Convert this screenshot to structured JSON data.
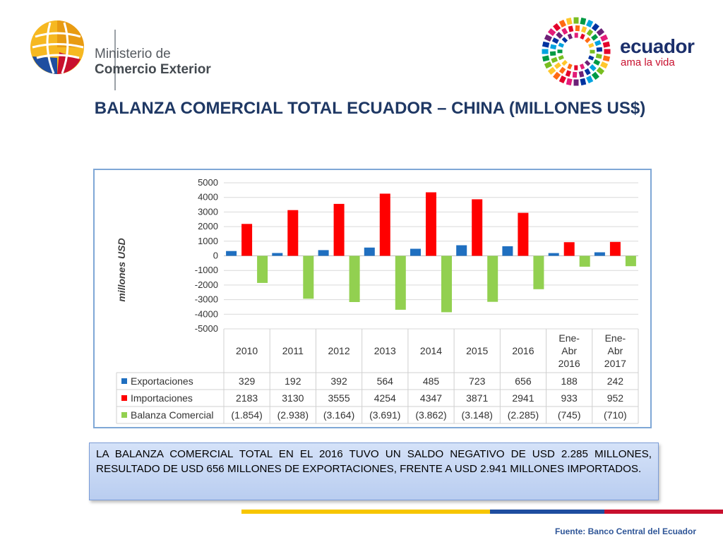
{
  "header": {
    "ministry_line1": "Ministerio de",
    "ministry_line2": "Comercio Exterior",
    "brand_word": "ecuador",
    "brand_tagline": "ama la vida"
  },
  "title": "BALANZA COMERCIAL TOTAL ECUADOR – CHINA (MILLONES US$)",
  "chart_data": {
    "type": "bar",
    "title": "",
    "ylabel": "millones USD",
    "xlabel": "",
    "ylim": [
      -5000,
      5000
    ],
    "yticks": [
      5000,
      4000,
      3000,
      2000,
      1000,
      0,
      -1000,
      -2000,
      -3000,
      -4000,
      -5000
    ],
    "grid": true,
    "legend": "table-left",
    "categories": [
      "2010",
      "2011",
      "2012",
      "2013",
      "2014",
      "2015",
      "2016",
      "Ene-Abr 2016",
      "Ene-Abr 2017"
    ],
    "category_lines": [
      [
        "2010"
      ],
      [
        "2011"
      ],
      [
        "2012"
      ],
      [
        "2013"
      ],
      [
        "2014"
      ],
      [
        "2015"
      ],
      [
        "2016"
      ],
      [
        "Ene-",
        "Abr",
        "2016"
      ],
      [
        "Ene-",
        "Abr",
        "2017"
      ]
    ],
    "series": [
      {
        "name": "Exportaciones",
        "color": "#1f6fc0",
        "values": [
          329,
          192,
          392,
          564,
          485,
          723,
          656,
          188,
          242
        ],
        "labels": [
          "329",
          "192",
          "392",
          "564",
          "485",
          "723",
          "656",
          "188",
          "242"
        ]
      },
      {
        "name": "Importaciones",
        "color": "#ff0000",
        "values": [
          2183,
          3130,
          3555,
          4254,
          4347,
          3871,
          2941,
          933,
          952
        ],
        "labels": [
          "2183",
          "3130",
          "3555",
          "4254",
          "4347",
          "3871",
          "2941",
          "933",
          "952"
        ]
      },
      {
        "name": "Balanza Comercial",
        "color": "#92d050",
        "values": [
          -1854,
          -2938,
          -3164,
          -3691,
          -3862,
          -3148,
          -2285,
          -745,
          -710
        ],
        "labels": [
          "(1.854)",
          "(2.938)",
          "(3.164)",
          "(3.691)",
          "(3.862)",
          "(3.148)",
          "(2.285)",
          "(745)",
          "(710)"
        ]
      }
    ]
  },
  "note": "LA BALANZA COMERCIAL TOTAL EN EL 2016 TUVO UN SALDO NEGATIVO DE USD 2.285 MILLONES, RESULTADO DE USD 656  MILLONES DE EXPORTACIONES, FRENTE A USD 2.941 MILLONES IMPORTADOS.",
  "source": "Fuente: Banco Central del Ecuador",
  "colors": {
    "title": "#1f3864",
    "stripe_yellow": "#f7c600",
    "stripe_blue": "#1f4ea0",
    "stripe_red": "#c8102e"
  }
}
